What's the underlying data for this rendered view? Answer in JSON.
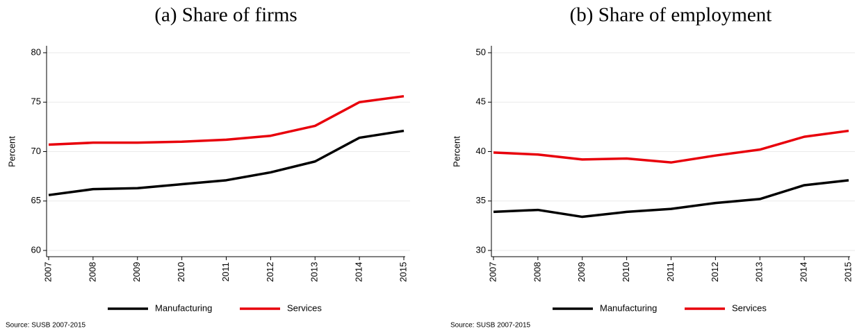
{
  "chart_data": [
    {
      "type": "line",
      "title": "(a) Share of firms",
      "y_label": "Percent",
      "note": "Source: SUSB 2007-2015",
      "categories": [
        "2007",
        "2008",
        "2009",
        "2010",
        "2011",
        "2012",
        "2013",
        "2014",
        "2015"
      ],
      "series": [
        {
          "name": "Manufacturing",
          "color": "#000000",
          "values": [
            65.6,
            66.2,
            66.3,
            66.7,
            67.1,
            67.9,
            69.0,
            71.4,
            72.1
          ]
        },
        {
          "name": "Services",
          "color": "#e8000b",
          "values": [
            70.7,
            70.9,
            70.9,
            71.0,
            71.2,
            71.6,
            72.6,
            75.0,
            75.6
          ]
        }
      ],
      "ylim": [
        60,
        80
      ],
      "yticks": [
        60,
        65,
        70,
        75,
        80
      ],
      "grid": true
    },
    {
      "type": "line",
      "title": "(b) Share of employment",
      "y_label": "Percent",
      "note": "Source: SUSB 2007-2015",
      "categories": [
        "2007",
        "2008",
        "2009",
        "2010",
        "2011",
        "2012",
        "2013",
        "2014",
        "2015"
      ],
      "series": [
        {
          "name": "Manufacturing",
          "color": "#000000",
          "values": [
            33.9,
            34.1,
            33.4,
            33.9,
            34.2,
            34.8,
            35.2,
            36.6,
            37.1
          ]
        },
        {
          "name": "Services",
          "color": "#e8000b",
          "values": [
            39.9,
            39.7,
            39.2,
            39.3,
            38.9,
            39.6,
            40.2,
            41.5,
            42.1
          ]
        }
      ],
      "ylim": [
        30,
        50
      ],
      "yticks": [
        30,
        35,
        40,
        45,
        50
      ],
      "grid": true
    }
  ]
}
